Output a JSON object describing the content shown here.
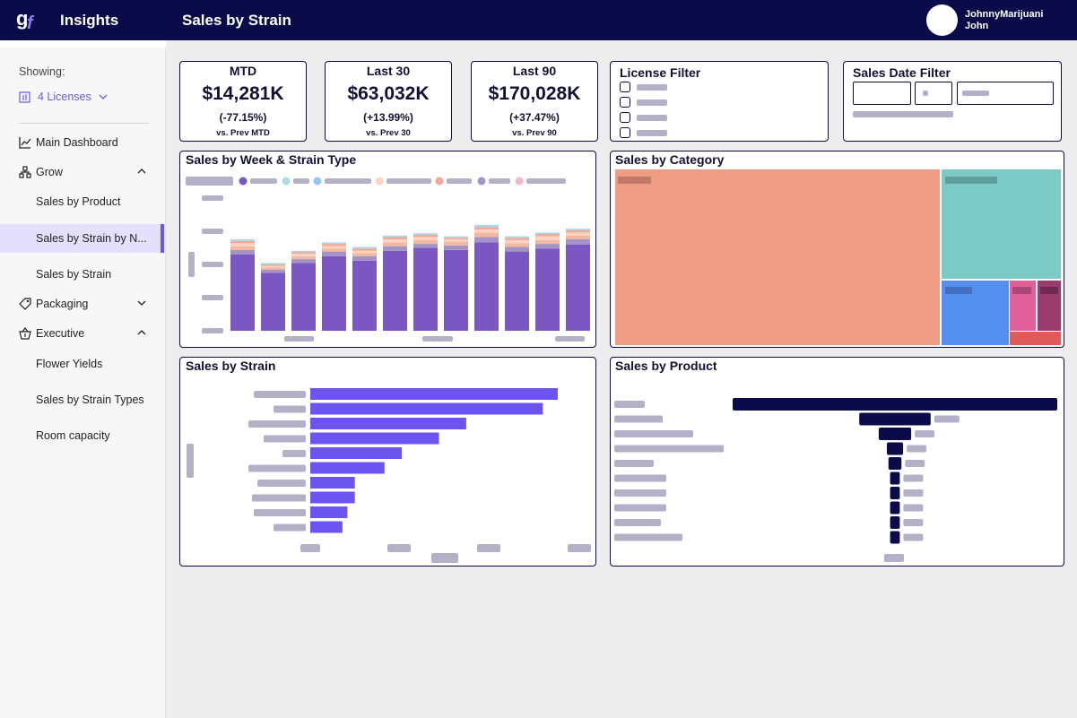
{
  "header": {
    "app_title": "Insights",
    "page_title": "Sales by Strain",
    "user_name": "JohnnyMarijuani",
    "user_sub": "John",
    "brand_color": "#0b0b4a"
  },
  "sidebar": {
    "showing_label": "Showing:",
    "licenses_label": "4 Licenses",
    "accent_color": "#6e57e0",
    "items": [
      {
        "label": "Main Dashboard",
        "icon": "line-chart-icon"
      },
      {
        "label": "Grow",
        "icon": "hierarchy-icon"
      },
      {
        "label": "Sales by Product"
      },
      {
        "label": "Sales by Strain by N..."
      },
      {
        "label": "Sales by Strain"
      },
      {
        "label": "Packaging",
        "icon": "tag-icon"
      },
      {
        "label": "Executive",
        "icon": "basket-icon"
      },
      {
        "label": "Flower Yields"
      },
      {
        "label": "Sales by Strain Types"
      },
      {
        "label": "Room capacity"
      }
    ]
  },
  "kpis": [
    {
      "title": "MTD",
      "value": "$14,281K",
      "change": "(-77.15%)",
      "sub": "vs. Prev MTD"
    },
    {
      "title": "Last 30",
      "value": "$63,032K",
      "change": "(+13.99%)",
      "sub": "vs. Prev 30"
    },
    {
      "title": "Last 90",
      "value": "$170,028K",
      "change": "(+37.47%)",
      "sub": "vs. Prev 90"
    }
  ],
  "filters": {
    "license_title": "License Filter",
    "date_title": "Sales Date Filter"
  },
  "panels": {
    "week_title": "Sales by Week & Strain Type",
    "category_title": "Sales by Category",
    "strain_title": "Sales by Strain",
    "product_title": "Sales by Product"
  },
  "chart_data": [
    {
      "type": "bar",
      "stacked": true,
      "title": "Sales by Week & Strain Type",
      "colors": [
        "#7b57c4",
        "#a493c7",
        "#f2b9a0",
        "#fcd3c0",
        "#f3a897",
        "#a7d8e8"
      ],
      "series": [
        {
          "values": [
            1.0,
            0.76,
            0.89,
            0.98,
            0.92,
            1.05,
            1.09,
            1.06,
            1.16,
            1.04,
            1.08,
            1.13
          ]
        },
        {
          "values": [
            0.06,
            0.04,
            0.05,
            0.06,
            0.06,
            0.06,
            0.05,
            0.06,
            0.07,
            0.06,
            0.06,
            0.07
          ]
        },
        {
          "values": [
            0.05,
            0.03,
            0.04,
            0.04,
            0.04,
            0.05,
            0.05,
            0.05,
            0.06,
            0.05,
            0.05,
            0.05
          ]
        },
        {
          "values": [
            0.04,
            0.02,
            0.03,
            0.03,
            0.03,
            0.04,
            0.04,
            0.03,
            0.04,
            0.04,
            0.05,
            0.04
          ]
        },
        {
          "values": [
            0.03,
            0.02,
            0.02,
            0.03,
            0.03,
            0.03,
            0.03,
            0.02,
            0.03,
            0.03,
            0.03,
            0.03
          ]
        },
        {
          "values": [
            0.02,
            0.02,
            0.02,
            0.02,
            0.02,
            0.02,
            0.02,
            0.02,
            0.03,
            0.02,
            0.02,
            0.02
          ]
        }
      ],
      "ylim": [
        0,
        2
      ],
      "legend": "top-left"
    },
    {
      "type": "treemap",
      "title": "Sales by Category",
      "values": [
        0.67,
        0.21,
        0.07,
        0.025,
        0.025,
        0.02
      ],
      "colors": [
        "#f09c84",
        "#7ccac6",
        "#5590f0",
        "#e0609a",
        "#9b3c6e",
        "#e15a5a"
      ]
    },
    {
      "type": "bar",
      "orientation": "horizontal",
      "title": "Sales by Strain",
      "values": [
        1.0,
        0.94,
        0.63,
        0.52,
        0.37,
        0.3,
        0.18,
        0.18,
        0.15,
        0.13
      ],
      "color": "#6c54f0"
    },
    {
      "type": "bar",
      "orientation": "horizontal",
      "centered": true,
      "title": "Sales by Product",
      "values": [
        1.0,
        0.22,
        0.1,
        0.05,
        0.04,
        0.03,
        0.03,
        0.03,
        0.03,
        0.03
      ],
      "color": "#0b0b4a"
    }
  ]
}
